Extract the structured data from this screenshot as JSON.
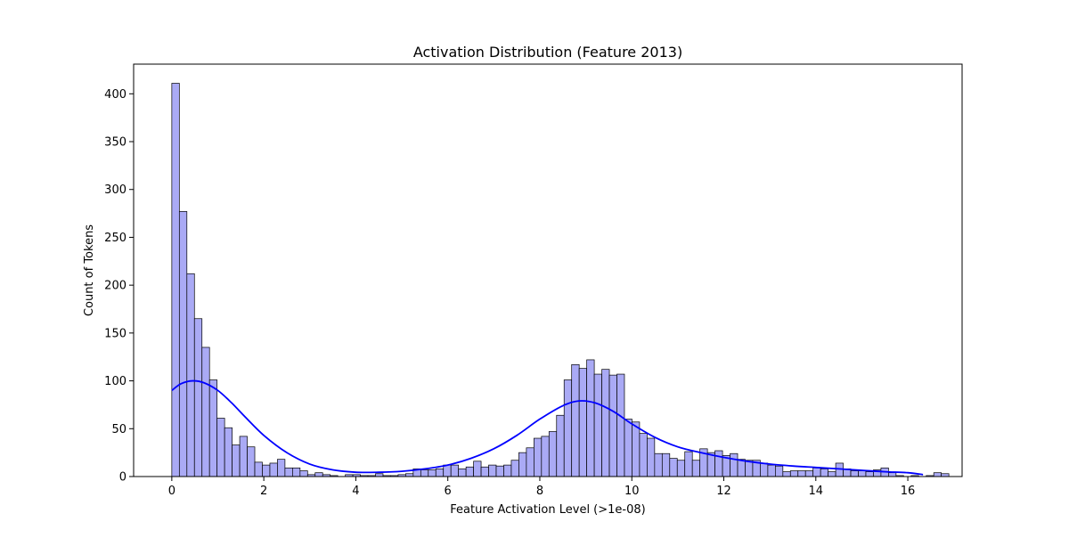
{
  "chart_data": {
    "type": "bar",
    "title": "Activation Distribution (Feature 2013)",
    "xlabel": "Feature Activation Level (>1e-08)",
    "ylabel": "Count of Tokens",
    "xlim": [
      -0.83,
      17.18
    ],
    "ylim": [
      0,
      431
    ],
    "xticks": [
      0,
      2,
      4,
      6,
      8,
      10,
      12,
      14,
      16
    ],
    "yticks": [
      0,
      50,
      100,
      150,
      200,
      250,
      300,
      350,
      400
    ],
    "grid": false,
    "legend": "none",
    "bin_width": 0.164,
    "bin_start": 0,
    "counts": [
      411,
      277,
      212,
      165,
      135,
      101,
      61,
      51,
      33,
      42,
      31,
      15,
      12,
      14,
      18,
      9,
      9,
      6,
      2,
      4,
      2,
      1,
      0,
      2,
      2,
      1,
      1,
      3,
      1,
      1,
      2,
      3,
      8,
      7,
      7,
      8,
      12,
      12,
      8,
      10,
      16,
      10,
      12,
      11,
      12,
      17,
      25,
      30,
      40,
      42,
      47,
      64,
      101,
      117,
      113,
      122,
      107,
      112,
      106,
      107,
      60,
      57,
      45,
      40,
      24,
      24,
      19,
      17,
      26,
      17,
      29,
      25,
      27,
      22,
      24,
      18,
      17,
      17,
      14,
      12,
      11,
      5,
      6,
      6,
      6,
      9,
      8,
      5,
      14,
      8,
      6,
      6,
      5,
      7,
      9,
      4,
      1,
      0,
      1,
      0,
      1,
      4,
      3
    ],
    "kde_points": [
      [
        0.0,
        90
      ],
      [
        0.2,
        97
      ],
      [
        0.45,
        100
      ],
      [
        0.7,
        98
      ],
      [
        1.0,
        90
      ],
      [
        1.3,
        77
      ],
      [
        1.6,
        62
      ],
      [
        2.0,
        43
      ],
      [
        2.5,
        25
      ],
      [
        3.0,
        13
      ],
      [
        3.5,
        7
      ],
      [
        4.0,
        4.5
      ],
      [
        4.5,
        4.5
      ],
      [
        5.0,
        5.5
      ],
      [
        5.5,
        8
      ],
      [
        6.0,
        12
      ],
      [
        6.5,
        19
      ],
      [
        7.0,
        29
      ],
      [
        7.5,
        43
      ],
      [
        8.0,
        60
      ],
      [
        8.5,
        74
      ],
      [
        8.85,
        79
      ],
      [
        9.2,
        77
      ],
      [
        9.6,
        68
      ],
      [
        10.0,
        55
      ],
      [
        10.5,
        41
      ],
      [
        11.0,
        31
      ],
      [
        11.5,
        25
      ],
      [
        12.0,
        20
      ],
      [
        12.5,
        16
      ],
      [
        13.0,
        13
      ],
      [
        13.5,
        11
      ],
      [
        14.0,
        9.5
      ],
      [
        14.5,
        8
      ],
      [
        15.0,
        6.5
      ],
      [
        15.5,
        5
      ],
      [
        16.0,
        4
      ],
      [
        16.33,
        2
      ]
    ],
    "colors": {
      "bar_fill": "#aaaaf5",
      "bar_edge": "#000000",
      "kde_line": "#0000ff"
    }
  }
}
